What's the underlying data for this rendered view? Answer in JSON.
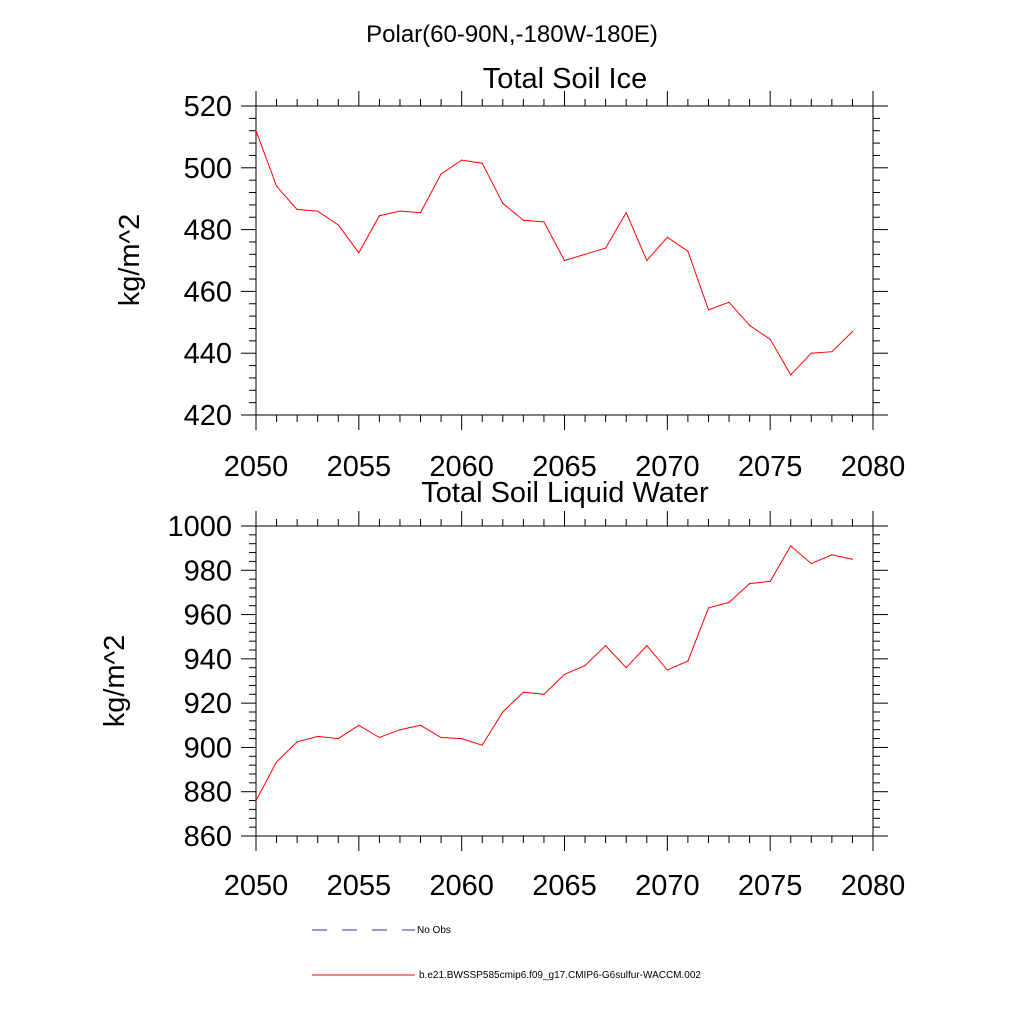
{
  "figure_title": "Polar(60-90N,-180W-180E)",
  "colors": {
    "series": "#ff0000",
    "obs": "#3333aa",
    "axis": "#000000"
  },
  "legend": [
    {
      "label": "No Obs",
      "style": "dashed",
      "color": "#3333aa"
    },
    {
      "label": "b.e21.BWSSP585cmip6.f09_g17.CMIP6-G6sulfur-WACCM.002",
      "style": "solid",
      "color": "#ff0000"
    }
  ],
  "chart_data": [
    {
      "type": "line",
      "title": "Total Soil Ice",
      "xlabel": "",
      "ylabel": "kg/m^2",
      "xlim": [
        2050,
        2080
      ],
      "ylim": [
        420,
        520
      ],
      "x_ticks": [
        2050,
        2055,
        2060,
        2065,
        2070,
        2075,
        2080
      ],
      "y_ticks": [
        420,
        440,
        460,
        480,
        500,
        520
      ],
      "grid": false,
      "x": [
        2050,
        2051,
        2052,
        2053,
        2054,
        2055,
        2056,
        2057,
        2058,
        2059,
        2060,
        2061,
        2062,
        2063,
        2064,
        2065,
        2066,
        2067,
        2068,
        2069,
        2070,
        2071,
        2072,
        2073,
        2074,
        2075,
        2076,
        2077,
        2078,
        2079
      ],
      "series": [
        {
          "values": [
            512,
            494,
            486.5,
            486,
            481.5,
            472.5,
            484.5,
            486,
            485.5,
            498,
            502.5,
            501.5,
            488.5,
            483,
            482.5,
            470,
            472,
            474,
            485.5,
            470,
            477.5,
            473,
            454,
            456.5,
            449,
            444.5,
            433,
            440,
            440.5,
            447
          ]
        }
      ]
    },
    {
      "type": "line",
      "title": "Total Soil Liquid Water",
      "xlabel": "",
      "ylabel": "kg/m^2",
      "xlim": [
        2050,
        2080
      ],
      "ylim": [
        860,
        1000
      ],
      "x_ticks": [
        2050,
        2055,
        2060,
        2065,
        2070,
        2075,
        2080
      ],
      "y_ticks": [
        860,
        880,
        900,
        920,
        940,
        960,
        980,
        1000
      ],
      "grid": false,
      "x": [
        2050,
        2051,
        2052,
        2053,
        2054,
        2055,
        2056,
        2057,
        2058,
        2059,
        2060,
        2061,
        2062,
        2063,
        2064,
        2065,
        2066,
        2067,
        2068,
        2069,
        2070,
        2071,
        2072,
        2073,
        2074,
        2075,
        2076,
        2077,
        2078,
        2079
      ],
      "series": [
        {
          "values": [
            876,
            893.5,
            902.5,
            905,
            904,
            910,
            904.5,
            908,
            910,
            904.5,
            904,
            901,
            916,
            925,
            924,
            933,
            937,
            946,
            936,
            946,
            935,
            939,
            963,
            965.5,
            974,
            975,
            991,
            983,
            987,
            985
          ]
        }
      ]
    }
  ]
}
